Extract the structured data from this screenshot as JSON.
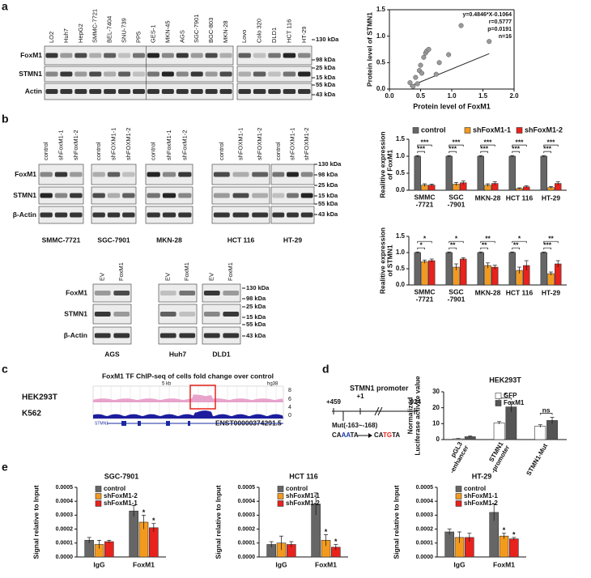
{
  "panel_labels": [
    "a",
    "b",
    "c",
    "d",
    "e"
  ],
  "blots": {
    "a": {
      "lanes": [
        "LO2",
        "Huh7",
        "HepG2",
        "SMMC-7721",
        "BEL-7404",
        "SNU-739",
        "PP5",
        "GES-1",
        "MKN-45",
        "AGS",
        "SGC-7901",
        "BGC-803",
        "MKN-28",
        "Lovo",
        "Colo 320",
        "DLD1",
        "HCT 116",
        "HT-29"
      ],
      "rows": [
        "FoxM1",
        "STMN1",
        "Actin"
      ],
      "markers": [
        "130 kDa",
        "98 kDa",
        "25 kDa",
        "15 kDa",
        "55 kDa",
        "43 kDa"
      ]
    },
    "b": {
      "groups": [
        {
          "name": "SMMC-7721",
          "lanes": [
            "control",
            "shFoxM1-1",
            "shFoxM1-2"
          ]
        },
        {
          "name": "SGC-7901",
          "lanes": [
            "control",
            "shFOXM1-1",
            "shFOXM1-2"
          ]
        },
        {
          "name": "MKN-28",
          "lanes": [
            "control",
            "shFoxM1-1",
            "shFoxM1-2"
          ]
        },
        {
          "name": "HCT 116",
          "lanes": [
            "control",
            "shFOXM1-1",
            "shFOXM1-2"
          ]
        },
        {
          "name": "HT-29",
          "lanes": [
            "control",
            "shFOXM1-1",
            "shFOXM1-2"
          ]
        }
      ],
      "rows": [
        "FoxM1",
        "STMN1",
        "β-Actin"
      ],
      "markers": [
        "130 kDa",
        "98 kDa",
        "25 kDa",
        "15 kDa",
        "55 kDa",
        "43 kDa"
      ]
    },
    "b_overexpression": {
      "groups": [
        {
          "name": "AGS",
          "lanes": [
            "EV",
            "FoxM1"
          ]
        },
        {
          "name": "Huh7",
          "lanes": [
            "EV",
            "FoxM1"
          ]
        },
        {
          "name": "DLD1",
          "lanes": [
            "EV",
            "FoxM1"
          ]
        }
      ],
      "rows": [
        "FoxM1",
        "STMN1",
        "β-Actin"
      ],
      "markers": [
        "130 kDa",
        "98 kDa",
        "25 kDa",
        "15 kDa",
        "55 kDa",
        "43 kDa"
      ]
    }
  },
  "chipseq": {
    "title": "FoxM1 TF ChIP-seq of cells fold change over control",
    "tracks": [
      "HEK293T",
      "K562"
    ],
    "scale_bar": "5 kb",
    "genome": "hg38",
    "track_scale": [
      "8",
      "6",
      "4",
      "0"
    ],
    "gene": "STMN1",
    "transcript": "ENST00000374291.5"
  },
  "promoter": {
    "title": "STMN1 promoter",
    "positions": [
      "+459",
      "+1",
      "-924"
    ],
    "mutation": "Mut(-163~-168)",
    "wild_type": [
      "CA",
      "AA",
      "TA"
    ],
    "mutant": [
      "CA",
      "TG",
      "TA"
    ]
  },
  "chart_data": [
    {
      "type": "scatter",
      "x_label": "Protein level of FoxM1",
      "y_label": "Protein level of STMN1",
      "annotations": [
        "y=0.4846*X-0.1064",
        "r=0.5777",
        "p=0.0191",
        "n=16"
      ],
      "x": [
        0.33,
        0.38,
        0.42,
        0.45,
        0.48,
        0.5,
        0.52,
        0.55,
        0.58,
        0.6,
        0.63,
        0.75,
        0.8,
        0.95,
        1.15,
        1.6
      ],
      "values": [
        0.12,
        0.05,
        0.22,
        0.1,
        0.35,
        0.45,
        0.3,
        0.6,
        0.68,
        0.72,
        0.75,
        0.28,
        0.5,
        0.65,
        1.2,
        0.9
      ],
      "color": "#999999",
      "fit": {
        "slope": 0.4846,
        "intercept": -0.1064
      },
      "xlim": [
        0,
        2
      ],
      "xticks": [
        {
          "value": 0,
          "label": "0.0"
        },
        {
          "value": 0.5,
          "label": "0.5"
        },
        {
          "value": 1,
          "label": "1.0"
        },
        {
          "value": 1.5,
          "label": "1.5"
        },
        {
          "value": 2,
          "label": "2.0"
        }
      ],
      "ylim": [
        0,
        1.5
      ],
      "yticks": [
        {
          "value": 0,
          "label": "0.0"
        },
        {
          "value": 0.5,
          "label": "0.5"
        },
        {
          "value": 1,
          "label": "1.0"
        },
        {
          "value": 1.5,
          "label": "1.5"
        }
      ]
    },
    {
      "type": "bar",
      "y_label": "Realitive expression\nof FoxM1",
      "legend": true,
      "categories": [
        "SMMC\n-7721",
        "SGC\n-7901",
        "MKN-28",
        "HCT 116",
        "HT-29"
      ],
      "series": [
        {
          "name": "control",
          "color": "#666666",
          "values": [
            1,
            1,
            1,
            1,
            1
          ],
          "errors": [
            0.02,
            0.02,
            0.02,
            0.02,
            0.02
          ]
        },
        {
          "name": "shFoxM1-1",
          "color": "#f39a1e",
          "values": [
            0.15,
            0.18,
            0.15,
            0.05,
            0.08
          ],
          "errors": [
            0.04,
            0.05,
            0.04,
            0.02,
            0.03
          ]
        },
        {
          "name": "shFoxM1-2",
          "color": "#e8221c",
          "values": [
            0.15,
            0.22,
            0.2,
            0.1,
            0.2
          ],
          "errors": [
            0.03,
            0.05,
            0.05,
            0.03,
            0.05
          ]
        }
      ],
      "sig_near": [
        "***",
        "***",
        "***",
        "***",
        "***"
      ],
      "sig_far": [
        "***",
        "***",
        "***",
        "***",
        "***"
      ],
      "ylim": [
        0,
        1.5
      ],
      "yticks": [
        {
          "value": 0,
          "label": "0.0"
        },
        {
          "value": 0.5,
          "label": "0.5"
        },
        {
          "value": 1,
          "label": "1.0"
        },
        {
          "value": 1.5,
          "label": "1.5"
        }
      ]
    },
    {
      "type": "bar",
      "y_label": "Realitive expression\nof STMN1",
      "legend": false,
      "categories": [
        "SMMC\n-7721",
        "SGC\n-7901",
        "MKN-28",
        "HCT 116",
        "HT-29"
      ],
      "series": [
        {
          "name": "control",
          "color": "#666666",
          "values": [
            1,
            1,
            1,
            1,
            1
          ],
          "errors": [
            0.02,
            0.02,
            0.02,
            0.02,
            0.02
          ]
        },
        {
          "name": "shFoxM1-1",
          "color": "#f39a1e",
          "values": [
            0.72,
            0.55,
            0.6,
            0.45,
            0.35
          ],
          "errors": [
            0.05,
            0.1,
            0.08,
            0.1,
            0.05
          ]
        },
        {
          "name": "shFoxM1-2",
          "color": "#e8221c",
          "values": [
            0.75,
            0.8,
            0.55,
            0.6,
            0.65
          ],
          "errors": [
            0.05,
            0.04,
            0.06,
            0.15,
            0.1
          ]
        }
      ],
      "sig_near": [
        "*",
        "**",
        "**",
        "**",
        "***"
      ],
      "sig_far": [
        "*",
        "*",
        "**",
        "*",
        "**"
      ],
      "ylim": [
        0,
        1.5
      ],
      "yticks": [
        {
          "value": 0,
          "label": "0.0"
        },
        {
          "value": 0.5,
          "label": "0.5"
        },
        {
          "value": 1,
          "label": "1.0"
        },
        {
          "value": 1.5,
          "label": "1.5"
        }
      ]
    },
    {
      "type": "bar",
      "title": "HEK293T",
      "y_label": "Normalized\nLuciferase activite value",
      "legend": true,
      "categories": [
        "pGL3\n-enhancer",
        "STMN1\n-promoter",
        "STMN1-Mut"
      ],
      "series": [
        {
          "name": "GFP",
          "color": "#ffffff",
          "values": [
            0.5,
            10.5,
            8.5
          ],
          "errors": [
            0.2,
            0.8,
            0.8
          ]
        },
        {
          "name": "FoxM1",
          "color": "#555555",
          "values": [
            1.8,
            20.5,
            12
          ],
          "errors": [
            0.4,
            3,
            2
          ]
        }
      ],
      "significance": [
        null,
        "*",
        "ns"
      ],
      "ylim": [
        0,
        30
      ],
      "yticks": [
        0,
        10,
        20,
        30
      ]
    },
    {
      "type": "bar",
      "title": "SGC-7901",
      "y_label": "Signal relative to Input",
      "legend": true,
      "categories": [
        "IgG",
        "FoxM1"
      ],
      "series": [
        {
          "name": "control",
          "color": "#666666",
          "values": [
            0.00012,
            0.00033
          ],
          "errors": [
            2e-05,
            4e-05
          ],
          "stars": [
            null,
            null
          ]
        },
        {
          "name": "shFoxM1-2",
          "color": "#f39a1e",
          "values": [
            9e-05,
            0.00025
          ],
          "errors": [
            3e-05,
            5e-05
          ],
          "stars": [
            null,
            "*"
          ]
        },
        {
          "name": "shFoxM1-1",
          "color": "#e8221c",
          "values": [
            0.00011,
            0.00021
          ],
          "errors": [
            1e-05,
            3e-05
          ],
          "stars": [
            null,
            "*"
          ]
        }
      ],
      "ylim": [
        0,
        0.0005
      ],
      "yticks": [
        {
          "value": 0,
          "label": "0.0000"
        },
        {
          "value": 0.0001,
          "label": "0.0001"
        },
        {
          "value": 0.0002,
          "label": "0.0002"
        },
        {
          "value": 0.0003,
          "label": "0.0003"
        },
        {
          "value": 0.0004,
          "label": "0.0004"
        },
        {
          "value": 0.0005,
          "label": "0.0005"
        }
      ]
    },
    {
      "type": "bar",
      "title": "HCT 116",
      "y_label": "Signal relative to Input",
      "legend": true,
      "categories": [
        "IgG",
        "FoxM1"
      ],
      "series": [
        {
          "name": "control",
          "color": "#666666",
          "values": [
            9e-05,
            0.00038
          ],
          "errors": [
            2e-05,
            8e-05
          ],
          "stars": [
            null,
            null
          ]
        },
        {
          "name": "shFoxM1-1",
          "color": "#f39a1e",
          "values": [
            0.0001,
            0.00012
          ],
          "errors": [
            5e-05,
            4e-05
          ],
          "stars": [
            null,
            "*"
          ]
        },
        {
          "name": "shFoxM1-2",
          "color": "#e8221c",
          "values": [
            9e-05,
            7e-05
          ],
          "errors": [
            2e-05,
            2e-05
          ],
          "stars": [
            null,
            "*"
          ]
        }
      ],
      "ylim": [
        0,
        0.0005
      ],
      "yticks": [
        {
          "value": 0,
          "label": "0.0000"
        },
        {
          "value": 0.0001,
          "label": "0.0001"
        },
        {
          "value": 0.0002,
          "label": "0.0002"
        },
        {
          "value": 0.0003,
          "label": "0.0003"
        },
        {
          "value": 0.0004,
          "label": "0.0004"
        },
        {
          "value": 0.0005,
          "label": "0.0005"
        }
      ]
    },
    {
      "type": "bar",
      "title": "HT-29",
      "y_label": "Signal relative to Input",
      "legend": true,
      "categories": [
        "IgG",
        "FoxM1"
      ],
      "series": [
        {
          "name": "control",
          "color": "#666666",
          "values": [
            0.00018,
            0.00032
          ],
          "errors": [
            2e-05,
            6e-05
          ],
          "stars": [
            null,
            null
          ]
        },
        {
          "name": "shFoxM1-1",
          "color": "#f39a1e",
          "values": [
            0.00014,
            0.00015
          ],
          "errors": [
            4e-05,
            2e-05
          ],
          "stars": [
            null,
            "*"
          ]
        },
        {
          "name": "shFoxM1-2",
          "color": "#e8221c",
          "values": [
            0.00014,
            0.00013
          ],
          "errors": [
            3e-05,
            1e-05
          ],
          "stars": [
            null,
            "*"
          ]
        }
      ],
      "ylim": [
        0,
        0.0005
      ],
      "yticks": [
        {
          "value": 0,
          "label": "0.0000"
        },
        {
          "value": 0.0001,
          "label": "0.0001"
        },
        {
          "value": 0.0002,
          "label": "0.0002"
        },
        {
          "value": 0.0003,
          "label": "0.0003"
        },
        {
          "value": 0.0004,
          "label": "0.0004"
        },
        {
          "value": 0.0005,
          "label": "0.0005"
        }
      ]
    }
  ]
}
